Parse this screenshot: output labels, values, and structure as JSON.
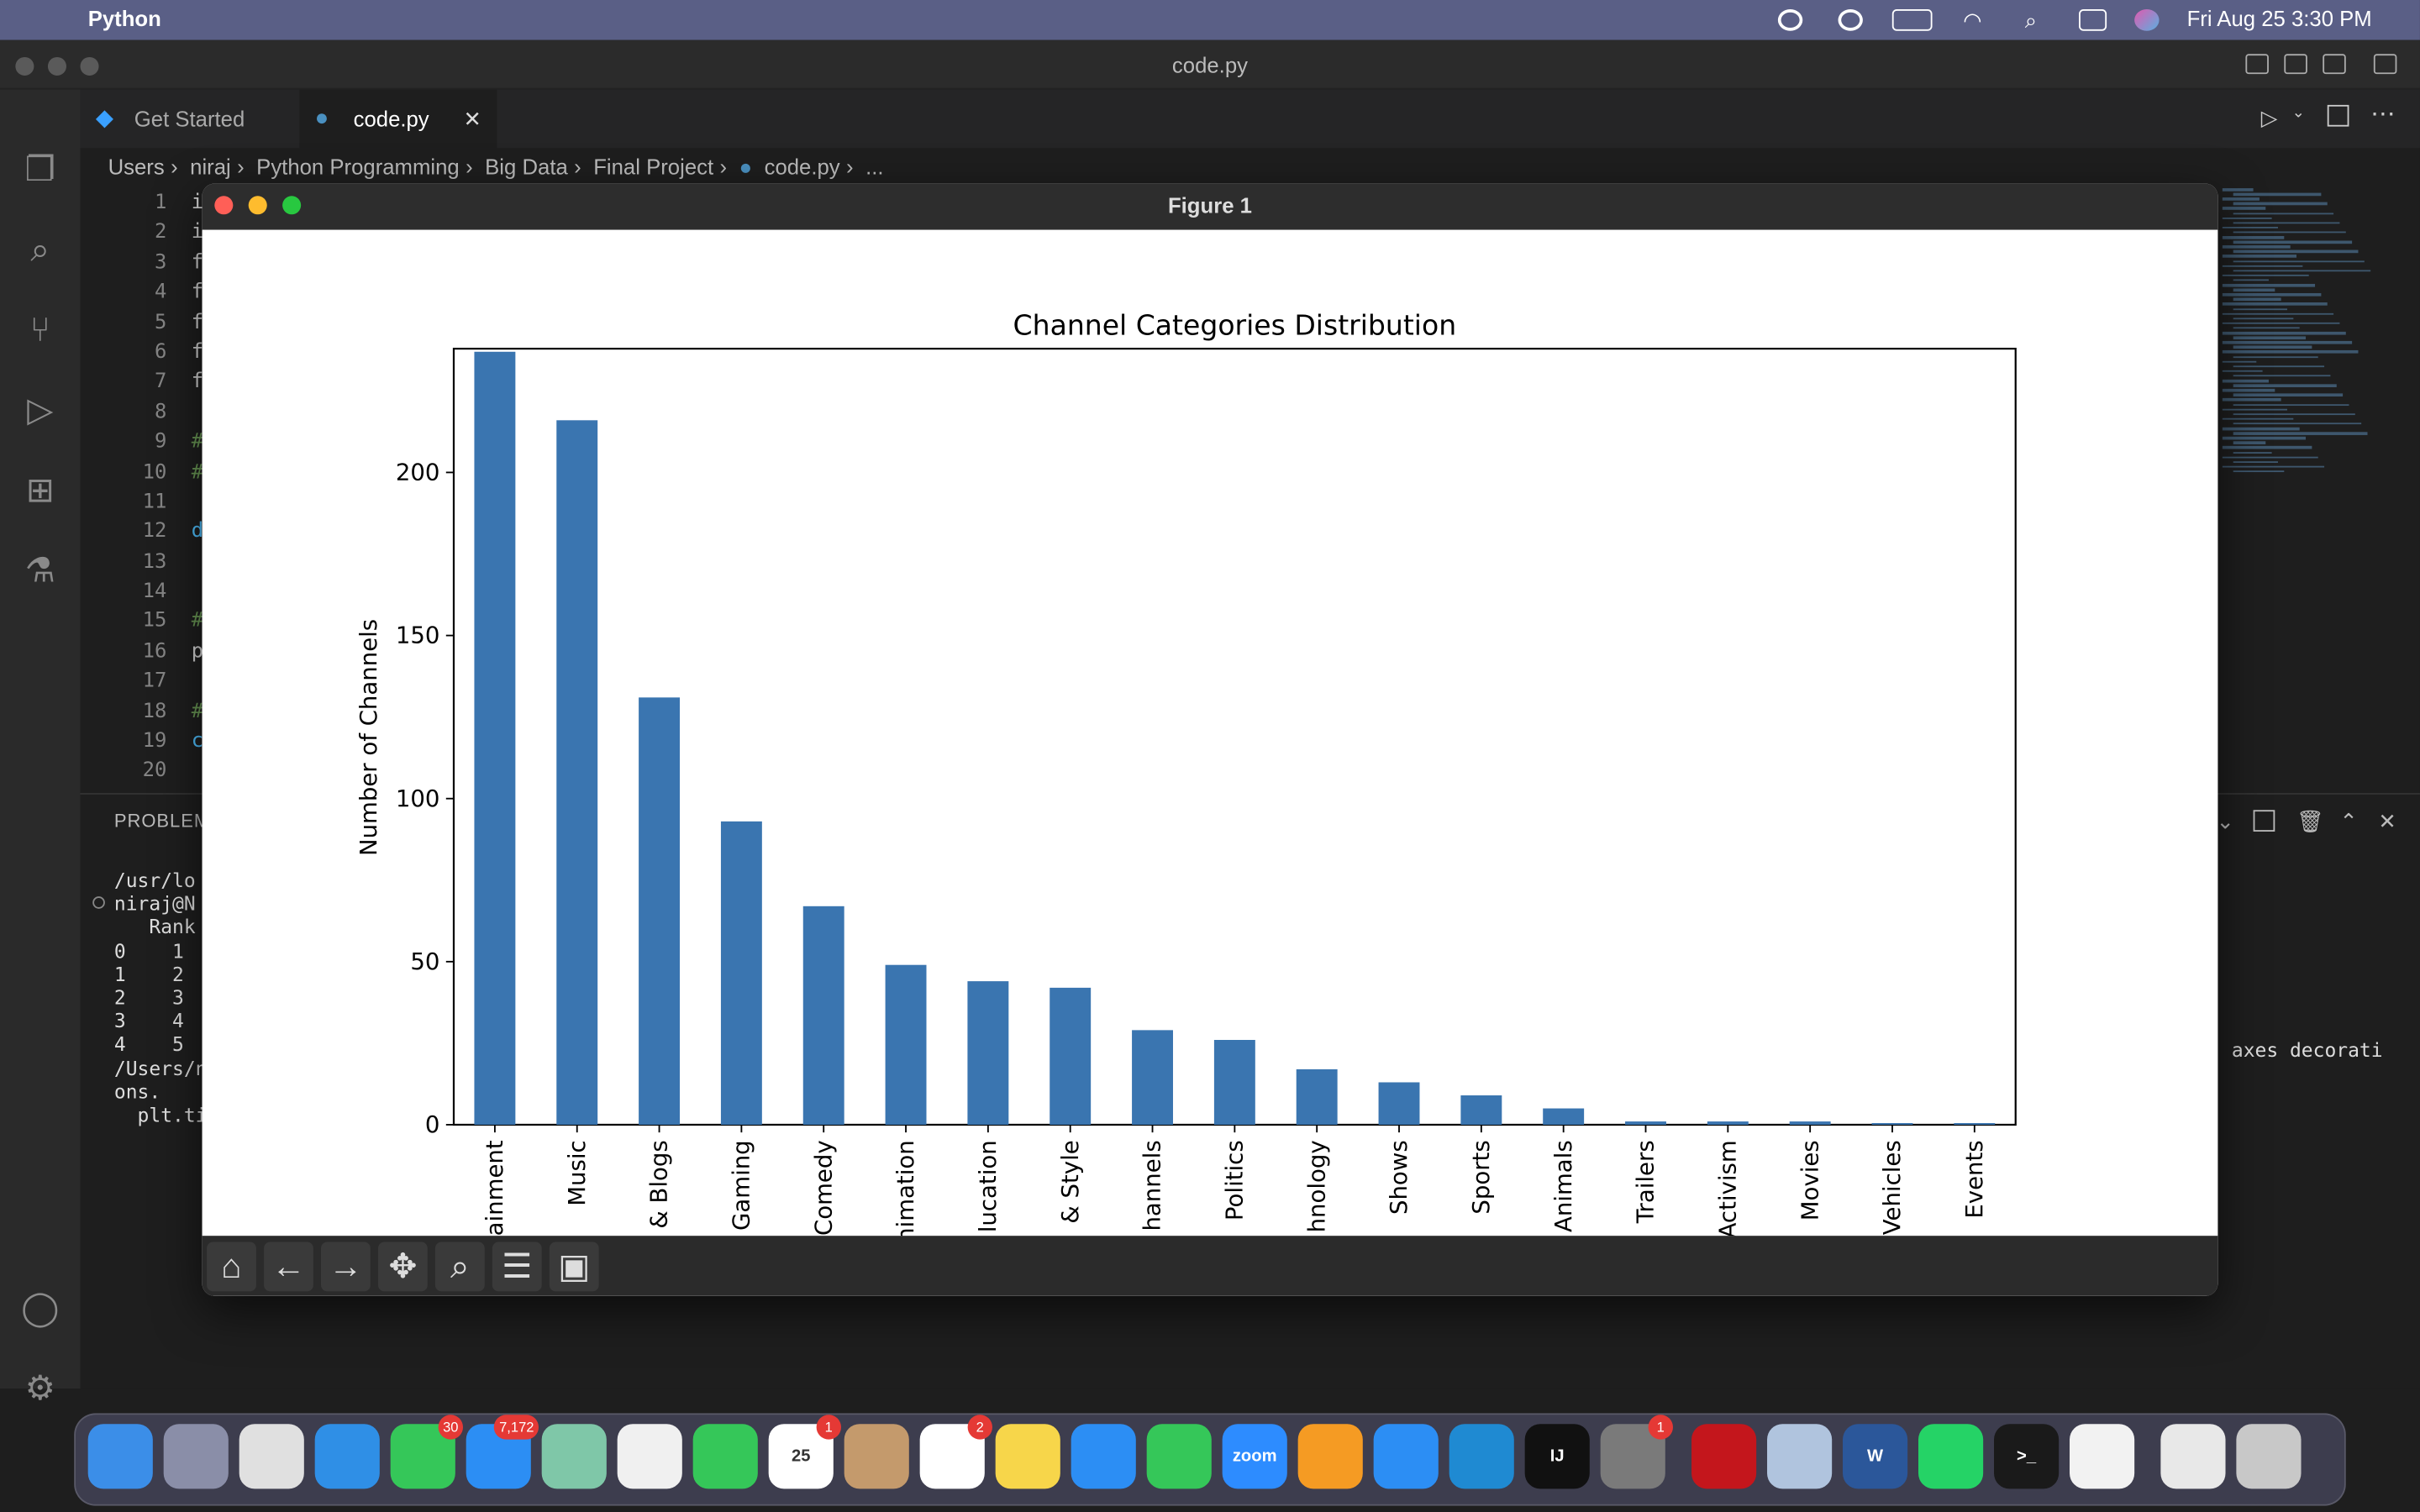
{
  "menubar": {
    "app_name": "Python",
    "clock": "Fri Aug 25  3:30 PM"
  },
  "window": {
    "title": "code.py"
  },
  "tabs": [
    {
      "label": "Get Started"
    },
    {
      "label": "code.py"
    }
  ],
  "breadcrumb": [
    "Users",
    "niraj",
    "Python Programming",
    "Big Data",
    "Final Project",
    "code.py",
    "..."
  ],
  "editor": {
    "line_numbers": [
      "1",
      "2",
      "3",
      "4",
      "5",
      "6",
      "7",
      "8",
      "9",
      "10",
      "11",
      "12",
      "13",
      "14",
      "15",
      "16",
      "17",
      "18",
      "19",
      "20"
    ],
    "visible_code_chars": [
      "i",
      "i",
      "f",
      "f",
      "f",
      "f",
      "f",
      "",
      "#",
      "#",
      "",
      "d",
      "",
      "",
      "#",
      "p",
      "",
      "#",
      "c",
      ""
    ]
  },
  "panel": {
    "tab_label": "PROBLEM",
    "terminal_lines": [
      "/usr/lo",
      "niraj@N",
      "   Rank",
      "0    1",
      "1    2",
      "2    3",
      "3    4",
      "4    5",
      "/Users/n",
      "ons.",
      "  plt.ti"
    ],
    "right_text": "axes decorati"
  },
  "figure": {
    "title": "Figure 1"
  },
  "chart_data": {
    "type": "bar",
    "title": "Channel Categories Distribution",
    "ylabel": "Number of Channels",
    "xlabel": "",
    "ylim": [
      0,
      237
    ],
    "yticks": [
      0,
      50,
      100,
      150,
      200
    ],
    "color": "#3a75b0",
    "categories": [
      "ainment",
      "Music",
      "& Blogs",
      "Gaming",
      "Comedy",
      "nimation",
      "lucation",
      "& Style",
      "hannels",
      "Politics",
      "hnology",
      "Shows",
      "Sports",
      "Animals",
      "Trailers",
      "Activism",
      "Movies",
      "Vehicles",
      "Events"
    ],
    "values": [
      237,
      216,
      131,
      93,
      67,
      49,
      44,
      42,
      29,
      26,
      17,
      13,
      9,
      5,
      1,
      1,
      1,
      0.5,
      0.5
    ]
  },
  "dock": {
    "items": [
      {
        "name": "finder",
        "label": "",
        "color": "#3b8ee8"
      },
      {
        "name": "launchpad",
        "label": "",
        "color": "#8a8ea8"
      },
      {
        "name": "chrome",
        "label": "",
        "color": "#e0e0e0"
      },
      {
        "name": "safari",
        "label": "",
        "color": "#2f8fe6"
      },
      {
        "name": "messages",
        "label": "",
        "color": "#35c759",
        "badge": "30"
      },
      {
        "name": "mail",
        "label": "",
        "color": "#2c8ef4",
        "badge": "7,172"
      },
      {
        "name": "maps",
        "label": "",
        "color": "#7fc7a8"
      },
      {
        "name": "photos",
        "label": "",
        "color": "#f0f0f0"
      },
      {
        "name": "facetime",
        "label": "",
        "color": "#35c759"
      },
      {
        "name": "calendar",
        "label": "25",
        "color": "#ffffff",
        "badge": "1"
      },
      {
        "name": "contacts",
        "label": "",
        "color": "#c49a6c"
      },
      {
        "name": "reminders",
        "label": "",
        "color": "#ffffff",
        "badge": "2"
      },
      {
        "name": "notes",
        "label": "",
        "color": "#f7d64a"
      },
      {
        "name": "keynote",
        "label": "",
        "color": "#2c8ef4"
      },
      {
        "name": "numbers",
        "label": "",
        "color": "#35c759"
      },
      {
        "name": "zoom",
        "label": "zoom",
        "color": "#2d8cff"
      },
      {
        "name": "pages",
        "label": "",
        "color": "#f59b23"
      },
      {
        "name": "app-store",
        "label": "",
        "color": "#2c8ef4"
      },
      {
        "name": "vscode",
        "label": "",
        "color": "#1f8ad2"
      },
      {
        "name": "intellij",
        "label": "IJ",
        "color": "#111111"
      },
      {
        "name": "system-settings",
        "label": "",
        "color": "#7a7a7a",
        "badge": "1"
      },
      {
        "name": "acrobat",
        "label": "",
        "color": "#c4161c"
      },
      {
        "name": "preview",
        "label": "",
        "color": "#b0c4de"
      },
      {
        "name": "word",
        "label": "W",
        "color": "#2b579a"
      },
      {
        "name": "whatsapp",
        "label": "",
        "color": "#25d366"
      },
      {
        "name": "terminal",
        "label": ">_",
        "color": "#1a1a1a"
      },
      {
        "name": "pinwheel",
        "label": "",
        "color": "#f2f2f2"
      },
      {
        "name": "documents",
        "label": "",
        "color": "#e8e8e8"
      },
      {
        "name": "trash",
        "label": "",
        "color": "#c8c8c8"
      }
    ]
  }
}
